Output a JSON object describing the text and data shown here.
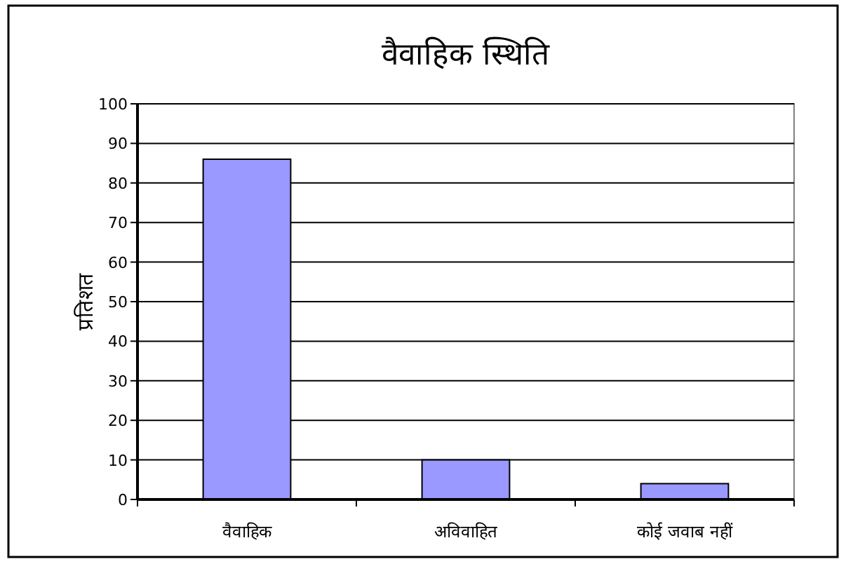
{
  "chart_data": {
    "type": "bar",
    "title": "वैवाहिक स्थिति",
    "ylabel": "प्रतिशत",
    "categories": [
      "वैवाहिक",
      "अविवाहित",
      "कोई जवाब नहीं"
    ],
    "values": [
      86,
      10,
      4
    ],
    "color": "#9999ff",
    "ylim": [
      0,
      100
    ],
    "yticks": [
      0,
      10,
      20,
      30,
      40,
      50,
      60,
      70,
      80,
      90,
      100
    ],
    "grid": "y"
  }
}
